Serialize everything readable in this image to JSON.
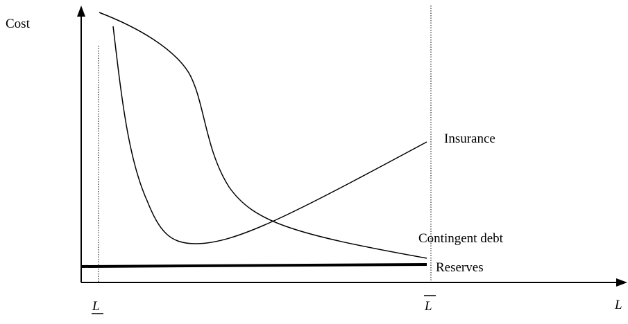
{
  "axes": {
    "y_label": "Cost",
    "x_label": "L"
  },
  "markers": {
    "lower": "L",
    "upper": "L"
  },
  "curves": {
    "insurance": "Insurance",
    "contingent_debt": "Contingent debt",
    "reserves": "Reserves"
  }
}
